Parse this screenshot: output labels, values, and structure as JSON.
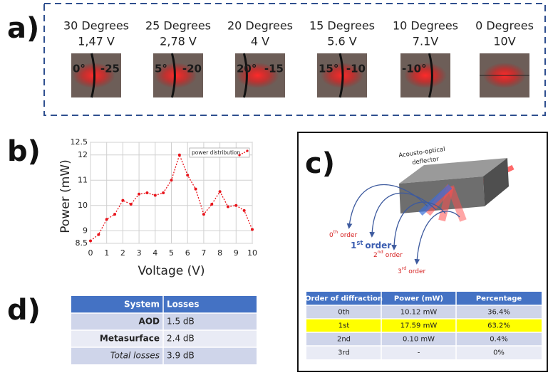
{
  "panel_a": {
    "label": "a)",
    "items": [
      {
        "angle": "30 Degrees",
        "voltage": "1,47 V",
        "scale": [
          "0°",
          "-25"
        ]
      },
      {
        "angle": "25 Degrees",
        "voltage": "2,78 V",
        "scale": [
          "5°",
          "-20"
        ]
      },
      {
        "angle": "20 Degrees",
        "voltage": "4 V",
        "scale": [
          "20°",
          "-15"
        ]
      },
      {
        "angle": "15 Degrees",
        "voltage": "5.6 V",
        "scale": [
          "15°",
          "-10"
        ]
      },
      {
        "angle": "10 Degrees",
        "voltage": "7.1V",
        "scale": [
          "-10°"
        ]
      },
      {
        "angle": "0 Degrees",
        "voltage": "10V"
      }
    ]
  },
  "panel_b": {
    "label": "b)"
  },
  "chart_data": {
    "type": "line",
    "xlabel": "Voltage (V)",
    "ylabel": "Power (mW)",
    "x": [
      0,
      0.5,
      1,
      1.5,
      2,
      2.5,
      3,
      3.5,
      4,
      4.5,
      5,
      5.5,
      6,
      6.5,
      7,
      7.5,
      8,
      8.5,
      9,
      9.5,
      10
    ],
    "series": [
      {
        "name": "power distribution",
        "color": "#e8141b",
        "values": [
          8.6,
          8.85,
          9.45,
          9.65,
          10.2,
          10.05,
          10.45,
          10.5,
          10.4,
          10.5,
          11.0,
          12.0,
          11.2,
          10.65,
          9.65,
          10.05,
          10.55,
          9.95,
          10.0,
          9.8,
          9.05
        ]
      }
    ],
    "xlim": [
      0,
      10
    ],
    "xticks": [
      0,
      1,
      2,
      3,
      4,
      5,
      6,
      7,
      8,
      9,
      10
    ],
    "ylim": [
      8.5,
      12.5
    ],
    "yticks": [
      8.5,
      9,
      10,
      11,
      12,
      12.5
    ],
    "grid": true,
    "legend": "upper right"
  },
  "panel_c": {
    "label": "c)",
    "device": [
      "Acousto-optical",
      "deflector"
    ],
    "orders": [
      {
        "n": "0",
        "sup": "th",
        "word": "order"
      },
      {
        "n": "1",
        "sup": "st",
        "word": "order"
      },
      {
        "n": "2",
        "sup": "nd",
        "word": "order"
      },
      {
        "n": "3",
        "sup": "rd",
        "word": "order"
      }
    ],
    "table": {
      "header": [
        "Order of diffraction",
        "Power (mW)",
        "Percentage"
      ],
      "rows": [
        [
          "0th",
          "10.12 mW",
          "36.4%"
        ],
        [
          "1st",
          "17.59 mW",
          "63.2%"
        ],
        [
          "2nd",
          "0.10 mW",
          "0.4%"
        ],
        [
          "3rd",
          "-",
          "0%"
        ]
      ]
    }
  },
  "panel_d": {
    "label": "d)",
    "table": {
      "header": [
        "System",
        "Losses"
      ],
      "rows": [
        [
          "AOD",
          "1.5 dB"
        ],
        [
          "Metasurface",
          "2.4 dB"
        ],
        [
          "Total losses",
          "3.9 dB"
        ]
      ]
    }
  }
}
